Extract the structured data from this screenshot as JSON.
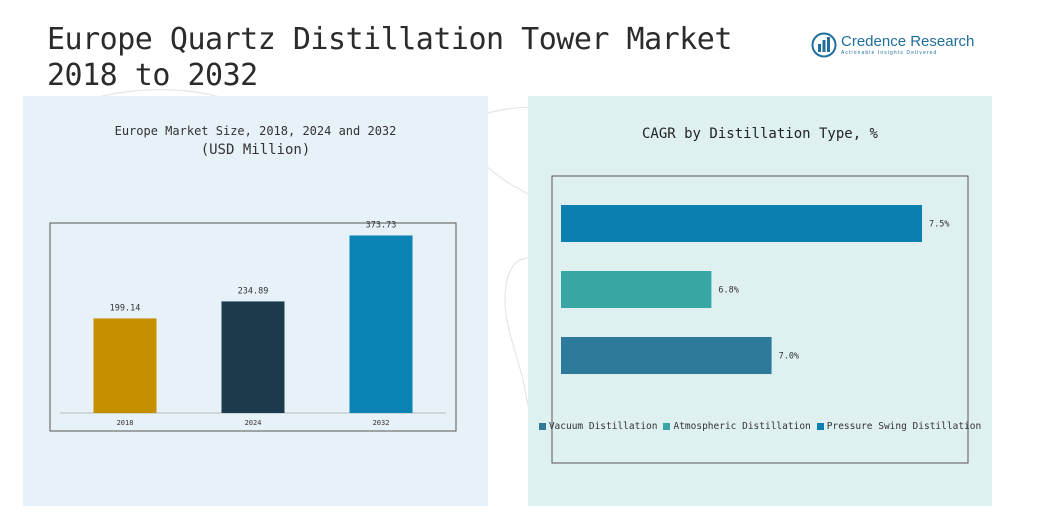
{
  "page": {
    "title": "Europe Quartz Distillation Tower Market 2018 to 2032"
  },
  "logo": {
    "name": "Credence Research",
    "tagline": "Actionable Insights Delivered",
    "color": "#1f6e9c"
  },
  "chart_data": [
    {
      "type": "bar",
      "title": "Europe Market Size, 2018, 2024 and 2032",
      "subtitle": "(USD Million)",
      "categories": [
        "2018",
        "2024",
        "2032"
      ],
      "values": [
        199.14,
        234.89,
        373.73
      ],
      "value_labels": [
        "199.14",
        "234.89",
        "373.73"
      ],
      "colors": [
        "#c49000",
        "#1b3a4b",
        "#0a82b4"
      ],
      "ylim": [
        0,
        400
      ],
      "xlabel": "",
      "ylabel": "",
      "grid": false
    },
    {
      "type": "bar",
      "orientation": "horizontal",
      "title": "CAGR by Distillation Type, %",
      "categories": [
        "Pressure Swing Distillation",
        "Atmospheric Distillation",
        "Vacuum Distillation"
      ],
      "values": [
        7.5,
        6.8,
        7.0
      ],
      "value_labels": [
        "7.5%",
        "6.8%",
        "7.0%"
      ],
      "colors": [
        "#0a7fb0",
        "#38a7a3",
        "#2e7a9a"
      ],
      "xlim": [
        6.3,
        7.5
      ],
      "legend": [
        {
          "label": "Vacuum Distillation",
          "color": "#2e7a9a"
        },
        {
          "label": "Atmospheric Distillation",
          "color": "#38a7a3"
        },
        {
          "label": "Pressure Swing Distillation",
          "color": "#0a7fb0"
        }
      ],
      "legend_position": "bottom",
      "grid": false
    }
  ]
}
